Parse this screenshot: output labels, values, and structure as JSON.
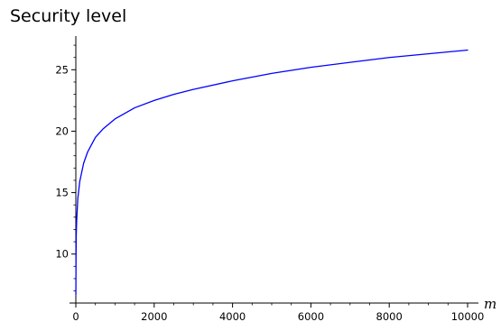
{
  "chart_data": {
    "type": "line",
    "title": "Security level",
    "xlabel": "m",
    "ylabel": "",
    "xlim": [
      0,
      10000
    ],
    "ylim": [
      6.6,
      27.3
    ],
    "grid": false,
    "legend": "none",
    "x_ticks": [
      0,
      2000,
      4000,
      6000,
      8000,
      10000
    ],
    "y_ticks": [
      10,
      15,
      20,
      25
    ],
    "x_ticks_labels": [
      "0",
      "2000",
      "4000",
      "6000",
      "8000",
      "10000"
    ],
    "y_ticks_labels": [
      "10",
      "15",
      "20",
      "25"
    ],
    "series": [
      {
        "color": "#0000ff",
        "x": [
          1,
          5,
          10,
          20,
          50,
          100,
          200,
          300,
          500,
          700,
          1000,
          1500,
          2000,
          2500,
          3000,
          4000,
          5000,
          6000,
          7000,
          8000,
          9000,
          10000
        ],
        "y": [
          6.7,
          9.6,
          11.4,
          12.6,
          14.5,
          15.9,
          17.4,
          18.3,
          19.5,
          20.2,
          21.0,
          21.9,
          22.5,
          23.0,
          23.4,
          24.1,
          24.7,
          25.2,
          25.6,
          26.0,
          26.3,
          26.6
        ]
      }
    ]
  }
}
